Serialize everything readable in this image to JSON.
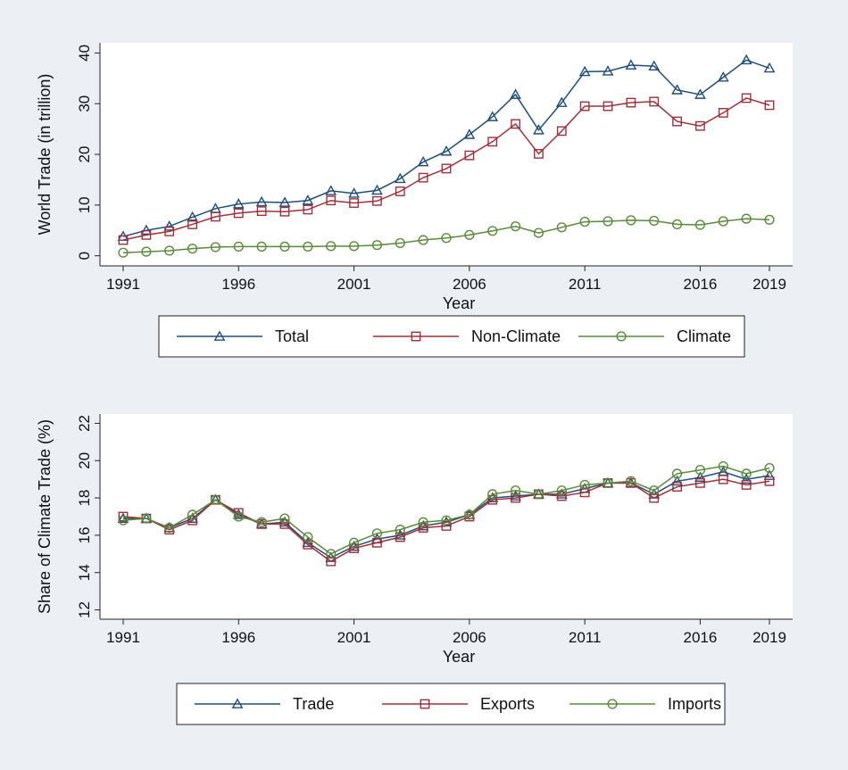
{
  "chart_data": [
    {
      "type": "line",
      "x": [
        1991,
        1992,
        1993,
        1994,
        1995,
        1996,
        1997,
        1998,
        1999,
        2000,
        2001,
        2002,
        2003,
        2004,
        2005,
        2006,
        2007,
        2008,
        2009,
        2010,
        2011,
        2012,
        2013,
        2014,
        2015,
        2016,
        2017,
        2018,
        2019
      ],
      "xticks": [
        1991,
        1996,
        2001,
        2006,
        2011,
        2016,
        2019
      ],
      "xlabel": "Year",
      "ylabel": "World Trade (in trillion)",
      "ylim": [
        -2,
        42
      ],
      "yticks": [
        0,
        10,
        20,
        30,
        40
      ],
      "legend_position": "bottom",
      "series": [
        {
          "name": "Total",
          "color": "#1f4e79",
          "marker": "triangle",
          "values": [
            3.8,
            5.0,
            5.8,
            7.6,
            9.3,
            10.2,
            10.6,
            10.5,
            10.9,
            12.8,
            12.3,
            12.9,
            15.2,
            18.5,
            20.6,
            23.9,
            27.4,
            31.8,
            24.8,
            30.2,
            36.3,
            36.4,
            37.6,
            37.4,
            32.7,
            31.8,
            35.2,
            38.6,
            37.0
          ]
        },
        {
          "name": "Non-Climate",
          "color": "#a0303a",
          "marker": "square",
          "values": [
            3.1,
            4.1,
            4.8,
            6.2,
            7.7,
            8.4,
            8.8,
            8.7,
            9.1,
            10.9,
            10.4,
            10.8,
            12.7,
            15.4,
            17.2,
            19.8,
            22.5,
            26.0,
            20.1,
            24.6,
            29.5,
            29.5,
            30.2,
            30.4,
            26.5,
            25.6,
            28.2,
            31.1,
            29.7
          ]
        },
        {
          "name": "Climate",
          "color": "#5a8a3a",
          "marker": "circle",
          "values": [
            0.6,
            0.8,
            1.0,
            1.4,
            1.7,
            1.8,
            1.8,
            1.8,
            1.8,
            1.9,
            1.9,
            2.1,
            2.5,
            3.1,
            3.5,
            4.1,
            4.9,
            5.8,
            4.5,
            5.6,
            6.7,
            6.8,
            7.0,
            6.9,
            6.2,
            6.1,
            6.8,
            7.3,
            7.1
          ]
        }
      ]
    },
    {
      "type": "line",
      "x": [
        1991,
        1992,
        1993,
        1994,
        1995,
        1996,
        1997,
        1998,
        1999,
        2000,
        2001,
        2002,
        2003,
        2004,
        2005,
        2006,
        2007,
        2008,
        2009,
        2010,
        2011,
        2012,
        2013,
        2014,
        2015,
        2016,
        2017,
        2018,
        2019
      ],
      "xticks": [
        1991,
        1996,
        2001,
        2006,
        2011,
        2016,
        2019
      ],
      "xlabel": "Year",
      "ylabel": "Share of Climate Trade (%)",
      "ylim": [
        11.5,
        22.5
      ],
      "yticks": [
        12,
        14,
        16,
        18,
        20,
        22
      ],
      "legend_position": "bottom",
      "series": [
        {
          "name": "Trade",
          "color": "#1f4e79",
          "marker": "triangle",
          "values": [
            16.9,
            16.9,
            16.4,
            16.9,
            17.9,
            17.1,
            16.6,
            16.7,
            15.6,
            14.8,
            15.4,
            15.8,
            16.0,
            16.5,
            16.7,
            17.1,
            18.0,
            18.1,
            18.2,
            18.2,
            18.5,
            18.8,
            18.8,
            18.2,
            18.9,
            19.1,
            19.4,
            19.0,
            19.2
          ]
        },
        {
          "name": "Exports",
          "color": "#a0303a",
          "marker": "square",
          "values": [
            17.0,
            16.9,
            16.3,
            16.8,
            17.9,
            17.2,
            16.6,
            16.6,
            15.5,
            14.6,
            15.3,
            15.6,
            15.9,
            16.4,
            16.5,
            17.0,
            17.9,
            18.0,
            18.2,
            18.1,
            18.3,
            18.8,
            18.8,
            18.0,
            18.6,
            18.8,
            19.0,
            18.7,
            18.9
          ]
        },
        {
          "name": "Imports",
          "color": "#5a8a3a",
          "marker": "circle",
          "values": [
            16.8,
            16.9,
            16.4,
            17.1,
            17.9,
            17.0,
            16.7,
            16.9,
            15.9,
            15.0,
            15.6,
            16.1,
            16.3,
            16.7,
            16.8,
            17.1,
            18.2,
            18.4,
            18.2,
            18.4,
            18.7,
            18.8,
            18.9,
            18.4,
            19.3,
            19.5,
            19.7,
            19.3,
            19.6
          ]
        }
      ]
    }
  ]
}
